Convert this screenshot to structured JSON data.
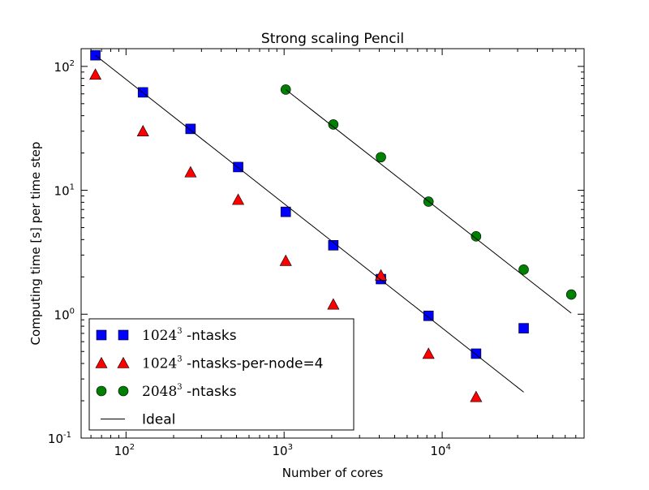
{
  "chart_data": {
    "type": "scatter",
    "title": "Strong scaling Pencil",
    "xlabel": "Number of cores",
    "ylabel": "Computing time [s] per time step",
    "xscale": "log",
    "yscale": "log",
    "xlim": [
      52,
      79000
    ],
    "ylim": [
      0.1,
      139
    ],
    "xticks": [
      {
        "base": "10",
        "exp": "2",
        "value": 100
      },
      {
        "base": "10",
        "exp": "3",
        "value": 1000
      },
      {
        "base": "10",
        "exp": "4",
        "value": 10000
      }
    ],
    "yticks": [
      {
        "base": "10",
        "exp": "-1",
        "value": 0.1
      },
      {
        "base": "10",
        "exp": "0",
        "value": 1
      },
      {
        "base": "10",
        "exp": "1",
        "value": 10
      },
      {
        "base": "10",
        "exp": "2",
        "value": 100
      }
    ],
    "grid": false,
    "legend_placement": "lower-left",
    "series": [
      {
        "name": {
          "base": "1024",
          "exp": "3",
          "suffix": "-ntasks"
        },
        "marker": "square",
        "color": "#0000ff",
        "x": [
          64,
          128,
          256,
          512,
          1024,
          2048,
          4096,
          8192,
          16384,
          32768
        ],
        "y": [
          123,
          61.7,
          31.3,
          15.4,
          6.7,
          3.6,
          1.92,
          0.97,
          0.48,
          0.77
        ]
      },
      {
        "name": {
          "base": "1024",
          "exp": "3",
          "suffix": "-ntasks-per-node=4"
        },
        "marker": "triangle",
        "color": "#ff0000",
        "x": [
          64,
          128,
          256,
          512,
          1024,
          2048,
          4096,
          8192,
          16384
        ],
        "y": [
          86,
          30,
          14,
          8.4,
          2.7,
          1.2,
          2.06,
          0.48,
          0.215
        ]
      },
      {
        "name": {
          "base": "2048",
          "exp": "3",
          "suffix": "-ntasks"
        },
        "marker": "circle",
        "color": "#008000",
        "x": [
          1024,
          2048,
          4096,
          8192,
          16384,
          32768,
          65536
        ],
        "y": [
          65,
          34,
          18.5,
          8.1,
          4.25,
          2.29,
          1.44
        ]
      },
      {
        "name": {
          "base": "",
          "exp": "",
          "suffix": "Ideal"
        },
        "marker": "line",
        "color": "#000000",
        "lines": [
          {
            "x": [
              64,
              32768
            ],
            "y": [
              123,
              0.235
            ]
          },
          {
            "x": [
              1024,
              65536
            ],
            "y": [
              65,
              1.02
            ]
          }
        ]
      }
    ]
  }
}
